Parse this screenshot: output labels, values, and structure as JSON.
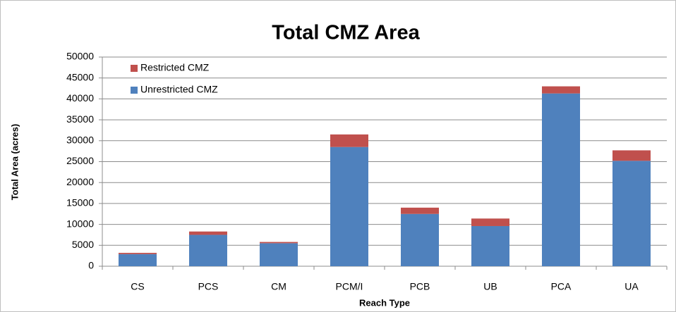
{
  "chart_data": {
    "type": "stacked_bar",
    "title": "Total CMZ Area",
    "x_label": "Reach Type",
    "y_label": "Total Area (acres)",
    "categories": [
      "CS",
      "PCS",
      "CM",
      "PCM/I",
      "PCB",
      "UB",
      "PCA",
      "UA"
    ],
    "series": [
      {
        "name": "Unrestricted CMZ",
        "color": "#4f81bd",
        "values": [
          2900,
          7500,
          5500,
          28500,
          12500,
          9600,
          41300,
          25200
        ]
      },
      {
        "name": "Restricted CMZ",
        "color": "#c0504d",
        "values": [
          300,
          800,
          300,
          3000,
          1500,
          1800,
          1700,
          2500
        ]
      }
    ],
    "ylim": [
      0,
      50000
    ],
    "yticks": [
      0,
      5000,
      10000,
      15000,
      20000,
      25000,
      30000,
      35000,
      40000,
      45000,
      50000
    ],
    "grid": true,
    "legend": "top-left"
  }
}
